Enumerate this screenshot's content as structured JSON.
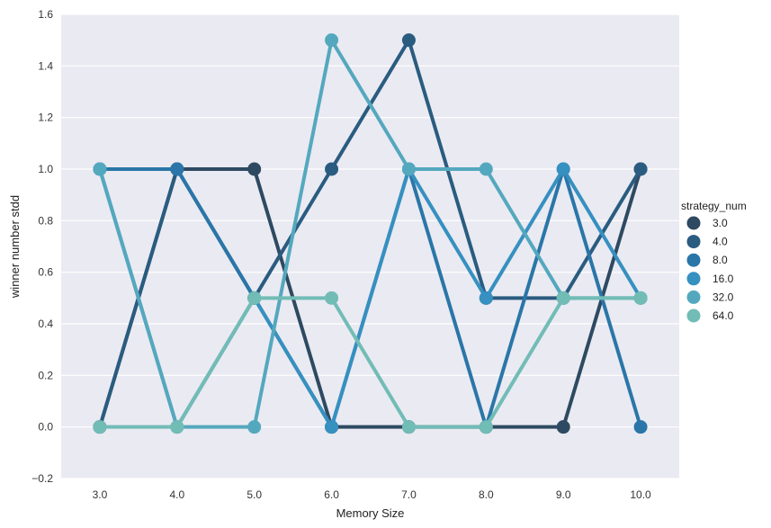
{
  "chart_data": {
    "type": "line",
    "xlabel": "Memory Size",
    "ylabel": "winner number stdd",
    "categories": [
      "3.0",
      "4.0",
      "5.0",
      "6.0",
      "7.0",
      "8.0",
      "9.0",
      "10.0"
    ],
    "ylim": [
      -0.2,
      1.6
    ],
    "yticks": [
      "−0.2",
      "0.0",
      "0.2",
      "0.4",
      "0.6",
      "0.8",
      "1.0",
      "1.2",
      "1.4",
      "1.6"
    ],
    "ytick_values": [
      -0.2,
      0.0,
      0.2,
      0.4,
      0.6,
      0.8,
      1.0,
      1.2,
      1.4,
      1.6
    ],
    "grid": true,
    "legend": {
      "title": "strategy_num",
      "placement": "right"
    },
    "series": [
      {
        "name": "3.0",
        "color": "#2e4a62",
        "values": [
          0.0,
          1.0,
          1.0,
          0.0,
          0.0,
          0.0,
          0.0,
          1.0
        ]
      },
      {
        "name": "4.0",
        "color": "#2a5c80",
        "values": [
          0.0,
          1.0,
          0.5,
          1.0,
          1.5,
          0.5,
          0.5,
          1.0
        ]
      },
      {
        "name": "8.0",
        "color": "#2a76a8",
        "values": [
          1.0,
          1.0,
          0.5,
          0.0,
          1.0,
          0.0,
          1.0,
          0.0
        ]
      },
      {
        "name": "16.0",
        "color": "#3690c0",
        "values": [
          1.0,
          0.0,
          0.5,
          0.0,
          1.0,
          0.5,
          1.0,
          0.5
        ]
      },
      {
        "name": "32.0",
        "color": "#54a8be",
        "values": [
          1.0,
          0.0,
          0.0,
          1.5,
          1.0,
          1.0,
          0.5,
          0.5
        ]
      },
      {
        "name": "64.0",
        "color": "#72bcb6",
        "values": [
          0.0,
          0.0,
          0.5,
          0.5,
          0.0,
          0.0,
          0.5,
          0.5
        ]
      }
    ]
  }
}
